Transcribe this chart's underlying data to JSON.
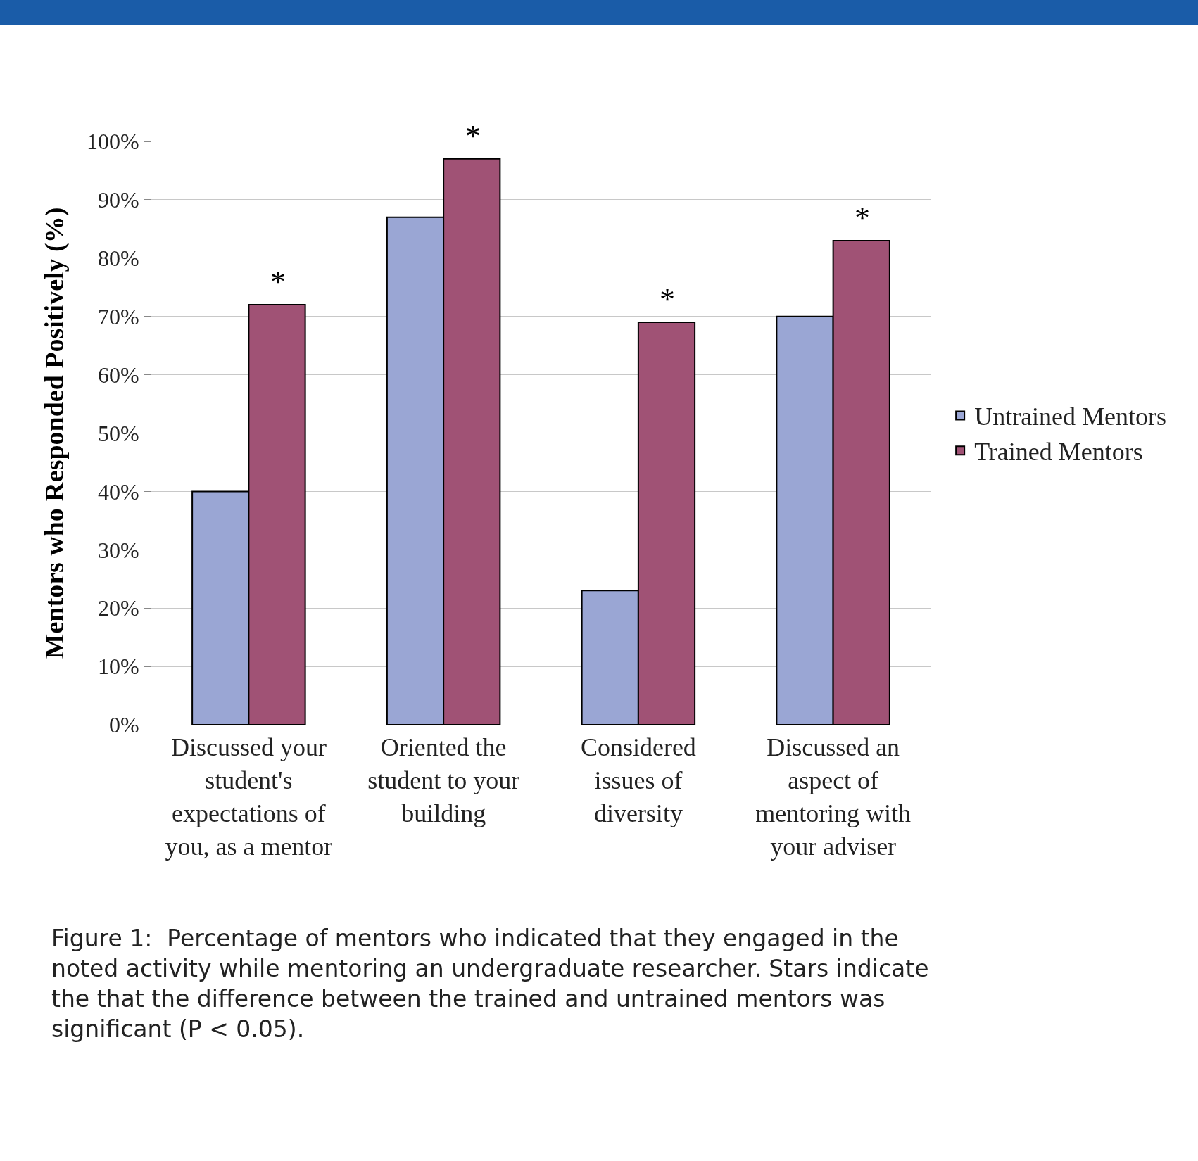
{
  "chart_data": {
    "type": "bar",
    "ylabel": "Mentors who Responded Positively (%)",
    "categories": [
      "Discussed your student's expectations of you, as a mentor",
      "Oriented the student to your building",
      "Considered issues of diversity",
      "Discussed an aspect of mentoring with your adviser"
    ],
    "series": [
      {
        "name": "Untrained Mentors",
        "color": "#9aa6d4",
        "values": [
          40,
          87,
          23,
          70
        ]
      },
      {
        "name": "Trained Mentors",
        "color": "#a05275",
        "values": [
          72,
          97,
          69,
          83
        ]
      }
    ],
    "ylim": [
      0,
      100
    ],
    "yticks": [
      {
        "value": 0,
        "label": "0%"
      },
      {
        "value": 10,
        "label": "10%"
      },
      {
        "value": 20,
        "label": "20%"
      },
      {
        "value": 30,
        "label": "30%"
      },
      {
        "value": 40,
        "label": "40%"
      },
      {
        "value": 50,
        "label": "50%"
      },
      {
        "value": 60,
        "label": "60%"
      },
      {
        "value": 70,
        "label": "70%"
      },
      {
        "value": 80,
        "label": "80%"
      },
      {
        "value": 90,
        "label": "90%"
      },
      {
        "value": 100,
        "label": "100%"
      }
    ],
    "grid": "y",
    "legend": "right",
    "annotations": [
      {
        "text": "*",
        "x": "Discussed your student's expectations of you, as a mentor",
        "y": 72
      },
      {
        "text": "*",
        "x": "Oriented the student to your building",
        "y": 97
      },
      {
        "text": "*",
        "x": "Considered issues of diversity",
        "y": 69
      },
      {
        "text": "*",
        "x": "Discussed an aspect of mentoring with your adviser",
        "y": 83
      },
      "Figure 1:  Percentage of mentors who indicated that they engaged in the noted activity while mentoring an undergraduate researcher. Stars indicate the that the difference between the trained and untrained mentors was significant (P < 0.05)."
    ]
  }
}
